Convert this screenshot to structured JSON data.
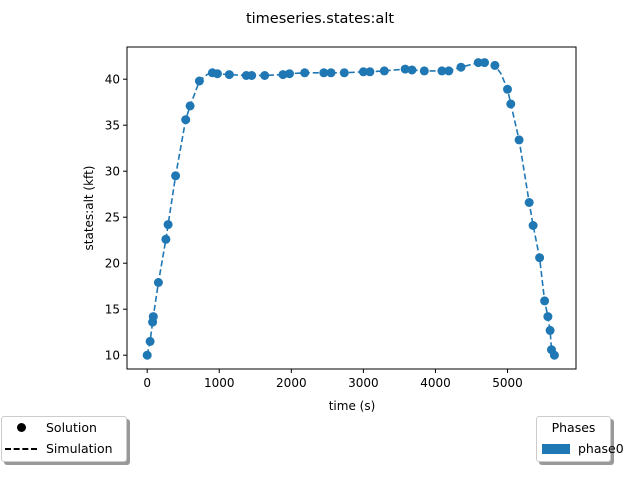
{
  "chart_data": {
    "type": "line",
    "title": "timeseries.states:alt",
    "xlabel": "time (s)",
    "ylabel": "states:alt (kft)",
    "xlim": [
      -280,
      5950
    ],
    "ylim": [
      8.5,
      43.5
    ],
    "xticks": [
      0,
      1000,
      2000,
      3000,
      4000,
      5000
    ],
    "yticks": [
      10,
      15,
      20,
      25,
      30,
      35,
      40
    ],
    "grid": false,
    "series": [
      {
        "name": "Solution",
        "style": "markers",
        "color": "#1f77b4",
        "x": [
          0,
          40,
          75,
          85,
          155,
          260,
          290,
          395,
          535,
          595,
          725,
          905,
          975,
          1140,
          1375,
          1450,
          1630,
          1885,
          1975,
          2185,
          2450,
          2550,
          2735,
          3000,
          3090,
          3290,
          3580,
          3675,
          3845,
          4090,
          4185,
          4355,
          4595,
          4680,
          4825,
          5000,
          5045,
          5160,
          5300,
          5355,
          5445,
          5515,
          5560,
          5590,
          5610,
          5650
        ],
        "y": [
          10.0,
          11.5,
          13.6,
          14.2,
          17.9,
          22.6,
          24.2,
          29.5,
          35.6,
          37.1,
          39.8,
          40.7,
          40.6,
          40.5,
          40.4,
          40.4,
          40.4,
          40.5,
          40.6,
          40.7,
          40.7,
          40.7,
          40.7,
          40.8,
          40.8,
          40.9,
          41.1,
          41.0,
          40.9,
          40.9,
          40.9,
          41.3,
          41.8,
          41.8,
          41.5,
          38.9,
          37.3,
          33.4,
          26.6,
          24.1,
          20.6,
          15.9,
          14.2,
          12.7,
          10.6,
          10.0
        ]
      },
      {
        "name": "Simulation",
        "style": "dashed",
        "color": "#1f77b4",
        "x": [
          0,
          40,
          75,
          85,
          155,
          260,
          290,
          395,
          535,
          595,
          725,
          830,
          905,
          975,
          1140,
          1375,
          1450,
          1630,
          1885,
          1975,
          2185,
          2450,
          2550,
          2735,
          3000,
          3090,
          3290,
          3580,
          3675,
          3845,
          4090,
          4185,
          4355,
          4595,
          4680,
          4825,
          4910,
          5000,
          5045,
          5160,
          5300,
          5355,
          5445,
          5515,
          5560,
          5590,
          5610,
          5650
        ],
        "y": [
          10.0,
          11.5,
          13.6,
          14.2,
          17.9,
          22.6,
          24.2,
          29.5,
          35.6,
          37.1,
          39.8,
          40.5,
          40.7,
          40.6,
          40.5,
          40.4,
          40.4,
          40.4,
          40.5,
          40.6,
          40.7,
          40.7,
          40.7,
          40.7,
          40.8,
          40.8,
          40.9,
          41.1,
          41.0,
          40.9,
          40.9,
          40.9,
          41.3,
          41.8,
          41.8,
          41.5,
          40.6,
          38.9,
          37.3,
          33.4,
          26.6,
          24.1,
          20.6,
          15.9,
          14.2,
          12.7,
          10.6,
          10.0
        ]
      }
    ],
    "legend": {
      "left": {
        "placement": "bottom-left",
        "entries": [
          {
            "label": "Solution",
            "symbol": "dot",
            "color": "#000000"
          },
          {
            "label": "Simulation",
            "symbol": "dashed-line",
            "color": "#000000"
          }
        ]
      },
      "right": {
        "placement": "bottom-right",
        "title": "Phases",
        "entries": [
          {
            "label": "phase0",
            "symbol": "patch",
            "color": "#1f77b4"
          }
        ]
      }
    }
  }
}
